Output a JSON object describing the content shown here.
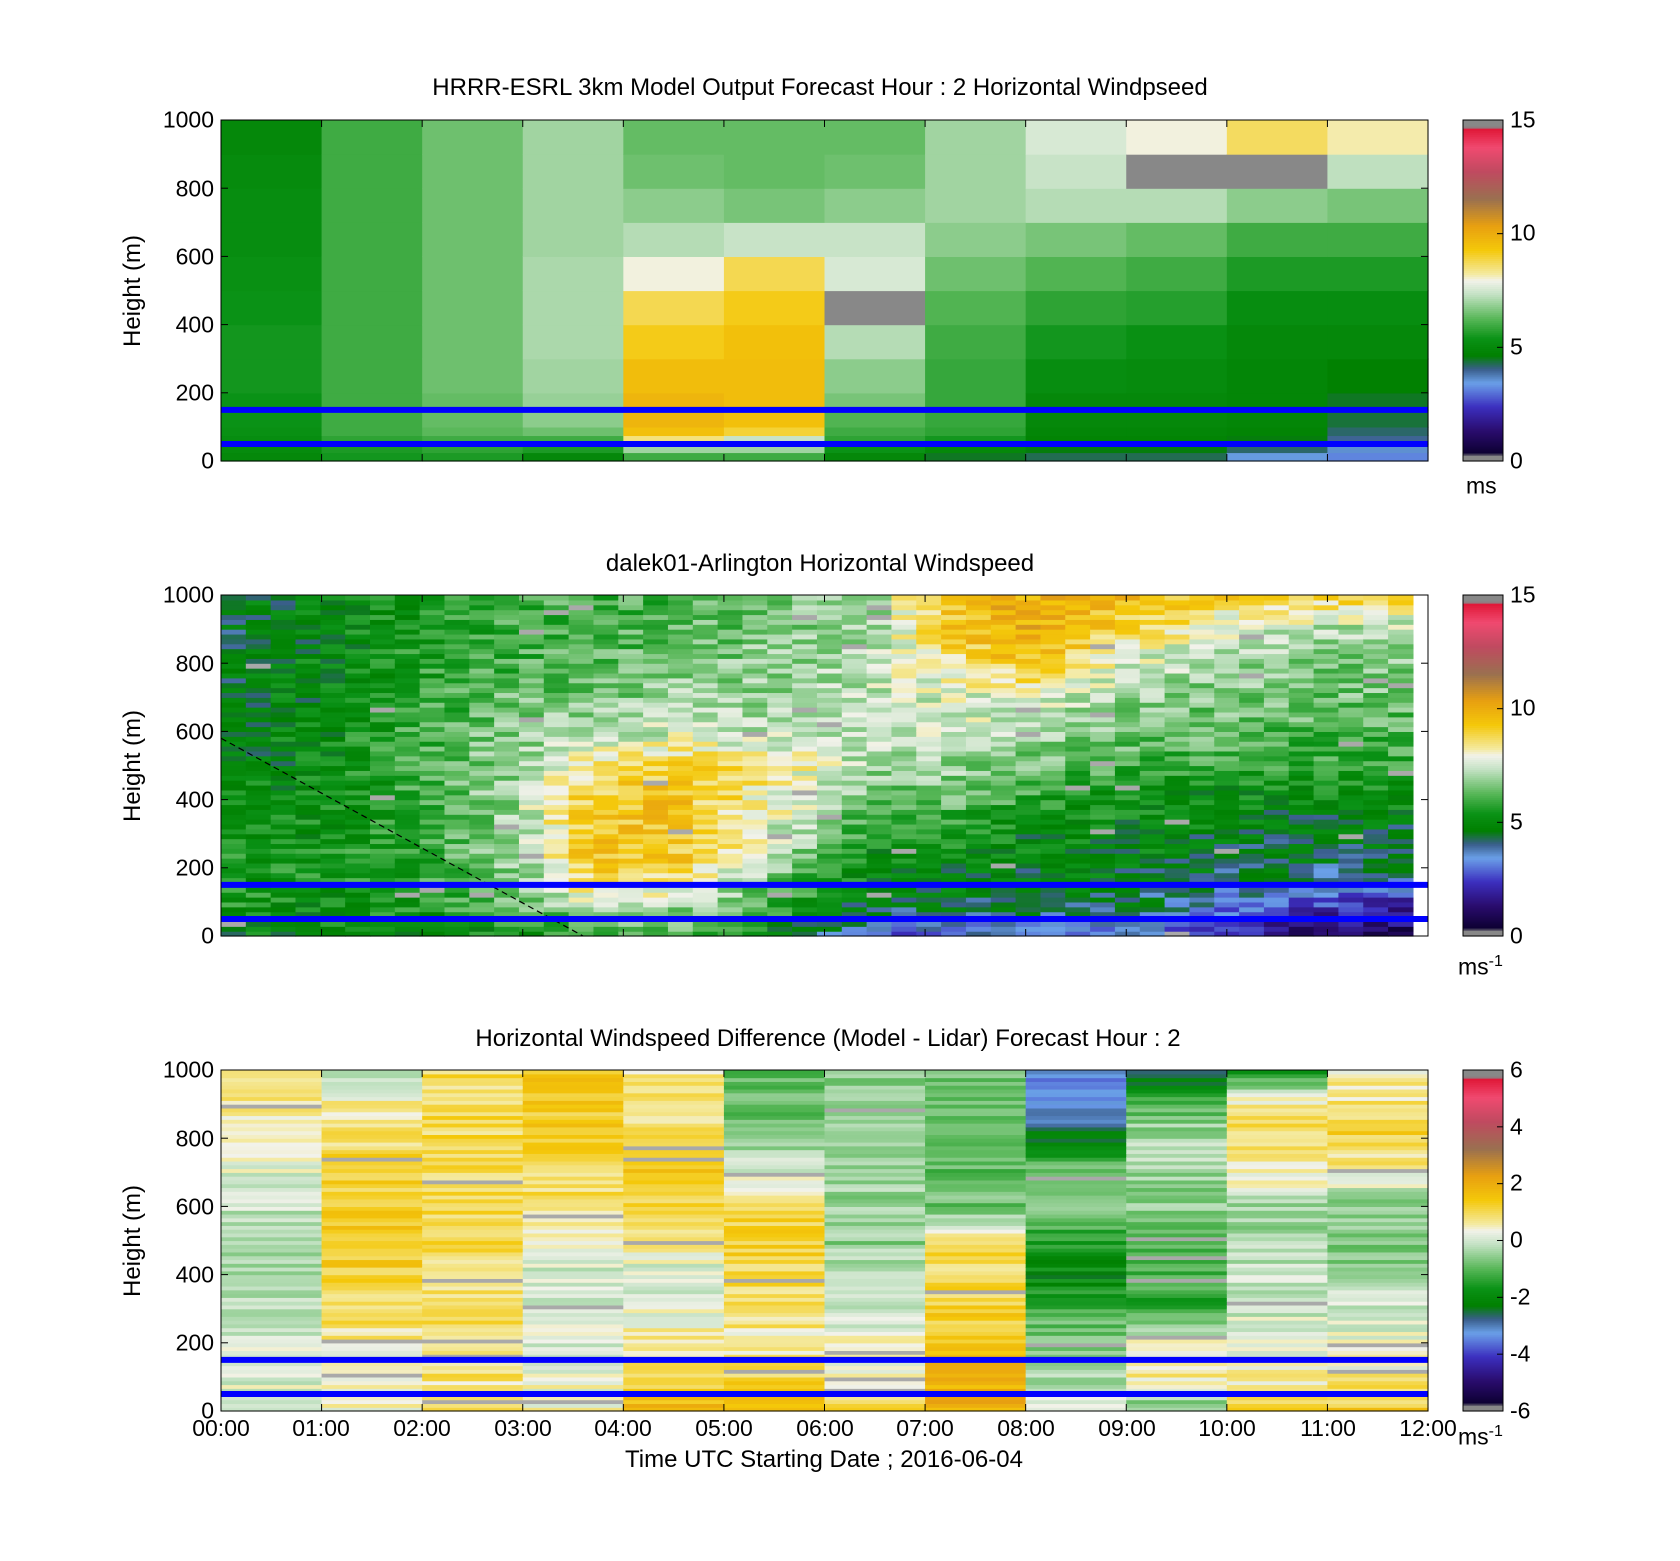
{
  "chart_data": [
    {
      "type": "heatmap",
      "title": "HRRR-ESRL 3km Model Output   Forecast Hour : 2 Horizontal Windpseed",
      "ylabel": "Height (m)",
      "ylim": [
        0,
        1000
      ],
      "yticks": [
        "0",
        "200",
        "400",
        "600",
        "800",
        "1000"
      ],
      "xlim_hours": [
        0,
        12
      ],
      "colorbar": {
        "min": 0,
        "max": 15,
        "ticks": [
          "0",
          "5",
          "10",
          "15"
        ],
        "unit": "ms",
        "unit_sup": ""
      },
      "reference_lines_m": [
        150,
        50
      ],
      "columns_hour_start": [
        0,
        1,
        2,
        3,
        4,
        5,
        6,
        7,
        8,
        9,
        10,
        11
      ],
      "levels_m": [
        0,
        25,
        50,
        75,
        100,
        150,
        200,
        300,
        400,
        500,
        600,
        700,
        800,
        900
      ],
      "values": [
        [
          5.0,
          5.1,
          5.2,
          5.3,
          5.4,
          5.4,
          5.5,
          5.5,
          5.4,
          5.3,
          5.2,
          5.2,
          5.1,
          5.0
        ],
        [
          5.5,
          5.6,
          5.8,
          6.0,
          6.0,
          6.0,
          6.0,
          6.0,
          6.0,
          6.0,
          6.0,
          6.0,
          6.0,
          6.0
        ],
        [
          5.6,
          5.8,
          6.0,
          6.3,
          6.4,
          6.4,
          6.5,
          6.5,
          6.5,
          6.5,
          6.5,
          6.5,
          6.5,
          6.5
        ],
        [
          5.0,
          5.6,
          6.0,
          6.5,
          6.8,
          6.9,
          7.0,
          7.1,
          7.1,
          7.1,
          7.0,
          7.0,
          7.0,
          7.0
        ],
        [
          6.0,
          7.0,
          8.5,
          9.5,
          9.8,
          9.8,
          9.6,
          9.2,
          8.8,
          8.0,
          7.2,
          6.8,
          6.5,
          6.4
        ],
        [
          6.0,
          7.0,
          7.4,
          9.0,
          9.5,
          9.6,
          9.6,
          9.5,
          9.2,
          8.8,
          7.4,
          6.6,
          6.4,
          6.4
        ],
        [
          5.0,
          5.4,
          5.8,
          6.0,
          6.2,
          6.6,
          6.8,
          7.2,
          15.5,
          7.6,
          7.4,
          6.8,
          6.5,
          6.4
        ],
        [
          4.5,
          5.0,
          5.5,
          5.8,
          5.9,
          5.9,
          5.9,
          6.0,
          6.2,
          6.5,
          6.8,
          7.0,
          7.0,
          7.0
        ],
        [
          4.3,
          4.6,
          4.8,
          4.9,
          5.0,
          5.0,
          5.2,
          5.5,
          5.8,
          6.2,
          6.6,
          7.2,
          7.4,
          7.6
        ],
        [
          4.3,
          4.6,
          4.8,
          4.9,
          5.0,
          5.0,
          5.1,
          5.3,
          5.7,
          6.0,
          6.4,
          7.2,
          15.5,
          8.0
        ],
        [
          3.5,
          4.2,
          4.6,
          4.8,
          4.9,
          4.9,
          4.9,
          5.0,
          5.2,
          5.6,
          6.0,
          6.8,
          15.5,
          8.7
        ],
        [
          3.2,
          3.6,
          4.0,
          4.2,
          4.4,
          4.5,
          4.7,
          5.0,
          5.2,
          5.6,
          6.0,
          6.6,
          7.3,
          8.2
        ]
      ]
    },
    {
      "type": "heatmap",
      "title": "dalek01-Arlington  Horizontal Windspeed",
      "ylabel": "Height (m)",
      "ylim": [
        0,
        1000
      ],
      "yticks": [
        "0",
        "200",
        "400",
        "600",
        "800",
        "1000"
      ],
      "xlim_hours": [
        0,
        12
      ],
      "colorbar": {
        "min": 0,
        "max": 15,
        "ticks": [
          "0",
          "5",
          "10",
          "15"
        ],
        "unit": "ms",
        "unit_sup": "-1"
      },
      "reference_lines_m": [
        150,
        50
      ],
      "dashed_line_m": [
        [
          0,
          580
        ],
        [
          3.6,
          0
        ]
      ],
      "time_samples": 48,
      "valid_until_hour": 11.85,
      "profile_keyframes": [
        {
          "hour": 0.0,
          "heights_m": [
            0,
            100,
            200,
            300,
            400,
            500,
            600,
            700,
            800,
            900,
            1000
          ],
          "speeds": [
            5.0,
            5.5,
            5.5,
            5.3,
            5.0,
            4.8,
            4.8,
            4.8,
            4.6,
            4.5,
            4.5
          ]
        },
        {
          "hour": 1.0,
          "heights_m": [
            0,
            100,
            200,
            300,
            400,
            500,
            600,
            700,
            800,
            900,
            1000
          ],
          "speeds": [
            5.0,
            5.3,
            5.4,
            5.3,
            5.2,
            5.1,
            5.0,
            5.0,
            5.0,
            5.0,
            5.0
          ]
        },
        {
          "hour": 2.0,
          "heights_m": [
            0,
            100,
            200,
            300,
            400,
            500,
            600,
            700,
            800,
            900,
            1000
          ],
          "speeds": [
            5.0,
            5.6,
            5.8,
            5.9,
            6.0,
            6.0,
            6.0,
            5.8,
            5.6,
            5.5,
            5.4
          ]
        },
        {
          "hour": 3.0,
          "heights_m": [
            0,
            100,
            200,
            300,
            400,
            500,
            600,
            700,
            800,
            900,
            1000
          ],
          "speeds": [
            5.2,
            6.5,
            7.0,
            7.1,
            7.1,
            7.0,
            6.8,
            6.5,
            6.2,
            6.0,
            6.0
          ]
        },
        {
          "hour": 3.6,
          "heights_m": [
            0,
            100,
            200,
            300,
            400,
            500,
            600,
            700,
            800,
            900,
            1000
          ],
          "speeds": [
            5.5,
            7.5,
            9.0,
            9.2,
            9.0,
            8.5,
            7.0,
            6.5,
            6.2,
            6.0,
            6.0
          ]
        },
        {
          "hour": 4.5,
          "heights_m": [
            0,
            100,
            200,
            300,
            400,
            500,
            600,
            700,
            800,
            900,
            1000
          ],
          "speeds": [
            6.0,
            7.2,
            9.2,
            9.5,
            9.4,
            9.0,
            7.5,
            7.0,
            6.6,
            6.3,
            6.0
          ]
        },
        {
          "hour": 5.5,
          "heights_m": [
            0,
            100,
            200,
            300,
            400,
            500,
            600,
            700,
            800,
            900,
            1000
          ],
          "speeds": [
            5.0,
            6.0,
            7.0,
            7.6,
            8.0,
            8.5,
            7.2,
            7.0,
            6.8,
            6.6,
            6.5
          ]
        },
        {
          "hour": 6.5,
          "heights_m": [
            0,
            100,
            200,
            300,
            400,
            500,
            600,
            700,
            800,
            900,
            1000
          ],
          "speeds": [
            3.0,
            4.5,
            5.0,
            5.6,
            6.3,
            7.0,
            7.4,
            7.4,
            7.2,
            7.0,
            7.0
          ]
        },
        {
          "hour": 7.2,
          "heights_m": [
            0,
            100,
            200,
            300,
            400,
            500,
            600,
            700,
            800,
            900,
            1000
          ],
          "speeds": [
            3.0,
            4.6,
            5.0,
            5.6,
            6.4,
            7.0,
            7.4,
            7.6,
            8.5,
            9.2,
            9.5
          ]
        },
        {
          "hour": 8.0,
          "heights_m": [
            0,
            100,
            200,
            300,
            400,
            500,
            600,
            700,
            800,
            900,
            1000
          ],
          "speeds": [
            3.5,
            4.4,
            4.8,
            5.0,
            5.8,
            6.5,
            7.2,
            7.6,
            9.4,
            10.0,
            9.8
          ]
        },
        {
          "hour": 9.0,
          "heights_m": [
            0,
            100,
            200,
            300,
            400,
            500,
            600,
            700,
            800,
            900,
            1000
          ],
          "speeds": [
            3.0,
            4.4,
            4.8,
            5.0,
            5.3,
            6.0,
            6.6,
            7.0,
            7.6,
            9.0,
            9.5
          ]
        },
        {
          "hour": 10.0,
          "heights_m": [
            0,
            100,
            200,
            300,
            400,
            500,
            600,
            700,
            800,
            900,
            1000
          ],
          "speeds": [
            2.0,
            3.5,
            4.5,
            4.7,
            5.0,
            5.8,
            6.3,
            6.6,
            7.0,
            7.6,
            9.0
          ]
        },
        {
          "hour": 11.0,
          "heights_m": [
            0,
            100,
            200,
            300,
            400,
            500,
            600,
            700,
            800,
            900,
            1000
          ],
          "speeds": [
            1.0,
            2.5,
            4.3,
            4.6,
            5.0,
            5.8,
            6.2,
            6.5,
            6.7,
            7.2,
            9.0
          ]
        },
        {
          "hour": 12.0,
          "heights_m": [
            0,
            100,
            200,
            300,
            400,
            500,
            600,
            700,
            800,
            900,
            1000
          ],
          "speeds": [
            0.8,
            2.2,
            4.3,
            4.6,
            5.2,
            5.8,
            6.2,
            6.5,
            6.7,
            7.2,
            8.8
          ]
        }
      ]
    },
    {
      "type": "heatmap",
      "title": "Horizontal Windspeed Difference (Model - Lidar) Forecast Hour : 2",
      "xlabel": "Time UTC  Starting Date ; 2016-06-04",
      "ylabel": "Height (m)",
      "ylim": [
        0,
        1000
      ],
      "yticks": [
        "0",
        "200",
        "400",
        "600",
        "800",
        "1000"
      ],
      "xlim_hours": [
        0,
        12
      ],
      "xticks": [
        "00:00",
        "01:00",
        "02:00",
        "03:00",
        "04:00",
        "05:00",
        "06:00",
        "07:00",
        "08:00",
        "09:00",
        "10:00",
        "11:00",
        "12:00"
      ],
      "colorbar": {
        "min": -6,
        "max": 6,
        "ticks": [
          "-6",
          "-4",
          "-2",
          "0",
          "2",
          "4",
          "6"
        ],
        "unit": "ms",
        "unit_sup": "-1"
      },
      "reference_lines_m": [
        150,
        50
      ],
      "columns_hour_start": [
        0,
        1,
        2,
        3,
        4,
        5,
        6,
        7,
        8,
        9,
        10,
        11
      ],
      "profile_heights_m": [
        0,
        100,
        200,
        300,
        400,
        500,
        600,
        700,
        800,
        900,
        1000
      ],
      "columns": [
        [
          0.4,
          0.0,
          0.0,
          -0.3,
          -0.4,
          -0.3,
          0.0,
          0.2,
          0.6,
          0.8,
          1.0
        ],
        [
          0.3,
          0.3,
          0.6,
          1.0,
          1.2,
          1.3,
          1.3,
          1.2,
          0.9,
          0.6,
          -0.4
        ],
        [
          0.8,
          0.8,
          0.9,
          0.9,
          1.0,
          1.0,
          1.1,
          1.0,
          1.0,
          1.0,
          1.0
        ],
        [
          0.4,
          0.3,
          0.2,
          0.2,
          0.0,
          0.2,
          0.8,
          1.0,
          1.3,
          1.4,
          1.5
        ],
        [
          1.8,
          1.2,
          0.6,
          0.2,
          0.0,
          0.6,
          1.2,
          1.4,
          1.0,
          0.8,
          0.6
        ],
        [
          1.8,
          1.0,
          0.6,
          0.8,
          1.0,
          1.2,
          1.0,
          0.0,
          -0.5,
          -1.0,
          -0.8
        ],
        [
          1.5,
          0.3,
          0.3,
          0.0,
          -0.3,
          -0.5,
          -0.5,
          -0.3,
          -0.3,
          -0.3,
          -0.6
        ],
        [
          2.0,
          1.7,
          1.5,
          1.2,
          1.0,
          1.0,
          -0.8,
          -1.0,
          -1.2,
          -0.8,
          -0.8
        ],
        [
          0.3,
          -0.4,
          -0.6,
          -1.2,
          -2.0,
          -1.5,
          -0.6,
          -0.6,
          -2.3,
          -3.0,
          -3.5
        ],
        [
          -0.8,
          0.6,
          0.3,
          -1.3,
          -1.2,
          -0.8,
          -0.6,
          -0.4,
          -0.3,
          -1.0,
          -2.8
        ],
        [
          1.4,
          0.5,
          0.2,
          0.0,
          0.0,
          -0.3,
          -0.4,
          0.6,
          1.1,
          0.6,
          -1.8
        ],
        [
          1.4,
          0.6,
          0.3,
          0.0,
          -0.4,
          -0.6,
          -0.6,
          0.5,
          1.2,
          0.8,
          0.4
        ]
      ]
    }
  ],
  "colormap": {
    "stops": [
      [
        0.0,
        "#888888"
      ],
      [
        0.02,
        "#888888"
      ],
      [
        0.021,
        "#0c0030"
      ],
      [
        0.09,
        "#2a0c6e"
      ],
      [
        0.16,
        "#3c2fbf"
      ],
      [
        0.23,
        "#6aa0e8"
      ],
      [
        0.27,
        "#3a5e8c"
      ],
      [
        0.31,
        "#008000"
      ],
      [
        0.36,
        "#0a9216"
      ],
      [
        0.42,
        "#5ab85a"
      ],
      [
        0.49,
        "#c4e2c4"
      ],
      [
        0.53,
        "#f2f2ea"
      ],
      [
        0.55,
        "#f4eaa0"
      ],
      [
        0.62,
        "#f4c80a"
      ],
      [
        0.69,
        "#e8a010"
      ],
      [
        0.77,
        "#9a7050"
      ],
      [
        0.85,
        "#c04a60"
      ],
      [
        0.92,
        "#f04a70"
      ],
      [
        0.975,
        "#e01838"
      ],
      [
        0.98,
        "#888888"
      ],
      [
        1.0,
        "#888888"
      ]
    ],
    "reference_line_color": "#0000ff",
    "missing_color": "#a9a9a9"
  }
}
